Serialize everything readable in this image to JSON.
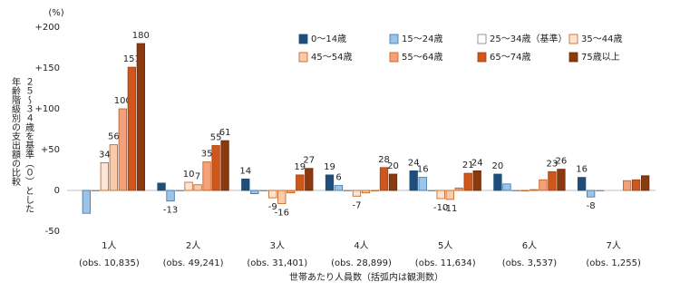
{
  "chart_data": {
    "type": "bar",
    "unit": "(%)",
    "y_title_lines": [
      "年齢階級別の支出額の比較",
      "２５～３４歳を基準（０）とした"
    ],
    "x_title": "世帯あたり人員数（括弧内は観測数）",
    "categories": [
      "1人",
      "2人",
      "3人",
      "4人",
      "5人",
      "6人",
      "7人"
    ],
    "category_notes": [
      "(obs. 10,835)",
      "(obs. 49,241)",
      "(obs. 31,401)",
      "(obs. 28,899)",
      "(obs. 11,634)",
      "(obs. 3,537)",
      "(obs. 1,255)"
    ],
    "series": [
      {
        "name": "0～14歳",
        "color": "#1f4e79",
        "edge": "#1f4e79",
        "values": [
          null,
          9,
          14,
          19,
          24,
          20,
          16
        ],
        "value_labels": [
          null,
          null,
          "14",
          "19",
          "24",
          "20",
          "16"
        ]
      },
      {
        "name": "15～24歳",
        "color": "#9dc3e6",
        "edge": "#2e75b6",
        "values": [
          -28,
          -13,
          -4,
          6,
          16,
          8,
          -8
        ],
        "value_labels": [
          null,
          "-13",
          null,
          "6",
          "16",
          null,
          "-8"
        ]
      },
      {
        "name": "25～34歳（基準）",
        "color": "#ffffff",
        "edge": "#7f7f7f",
        "values": [
          0,
          0,
          0,
          0,
          0,
          0,
          0
        ],
        "value_labels": [
          null,
          null,
          null,
          null,
          null,
          null,
          null
        ]
      },
      {
        "name": "35～44歳",
        "color": "#fce4d6",
        "edge": "#c55a11",
        "values": [
          34,
          10,
          -9,
          -7,
          -10,
          0,
          null
        ],
        "value_labels": [
          "34",
          "10",
          "-9",
          "-7",
          "-10",
          null,
          null
        ]
      },
      {
        "name": "45～54歳",
        "color": "#f8cbad",
        "edge": "#c55a11",
        "values": [
          56,
          7,
          -16,
          -3,
          -11,
          1,
          null
        ],
        "value_labels": [
          "56",
          "7",
          "-16",
          null,
          "-11",
          null,
          null
        ]
      },
      {
        "name": "55～64歳",
        "color": "#f4a07a",
        "edge": "#c55a11",
        "values": [
          100,
          35,
          -3,
          0,
          3,
          13,
          12
        ],
        "value_labels": [
          "100",
          "35",
          null,
          null,
          null,
          null,
          null
        ]
      },
      {
        "name": "65～74歳",
        "color": "#d0561b",
        "edge": "#a0400c",
        "values": [
          151,
          55,
          19,
          28,
          21,
          23,
          13
        ],
        "value_labels": [
          "151",
          "55",
          "19",
          "28",
          "21",
          "23",
          null
        ]
      },
      {
        "name": "75歳以上",
        "color": "#8b3a0f",
        "edge": "#6b2a08",
        "values": [
          180,
          61,
          27,
          20,
          24,
          26,
          18
        ],
        "value_labels": [
          "180",
          "61",
          "27",
          "20",
          "24",
          "26",
          null
        ]
      }
    ],
    "ylim": [
      -50,
      200
    ],
    "yticks": [
      -50,
      0,
      {
        "value": 50,
        "label": "+50"
      },
      {
        "value": 100,
        "label": "+100"
      },
      {
        "value": 150,
        "label": "+150"
      },
      {
        "value": 200,
        "label": "+200"
      }
    ]
  }
}
